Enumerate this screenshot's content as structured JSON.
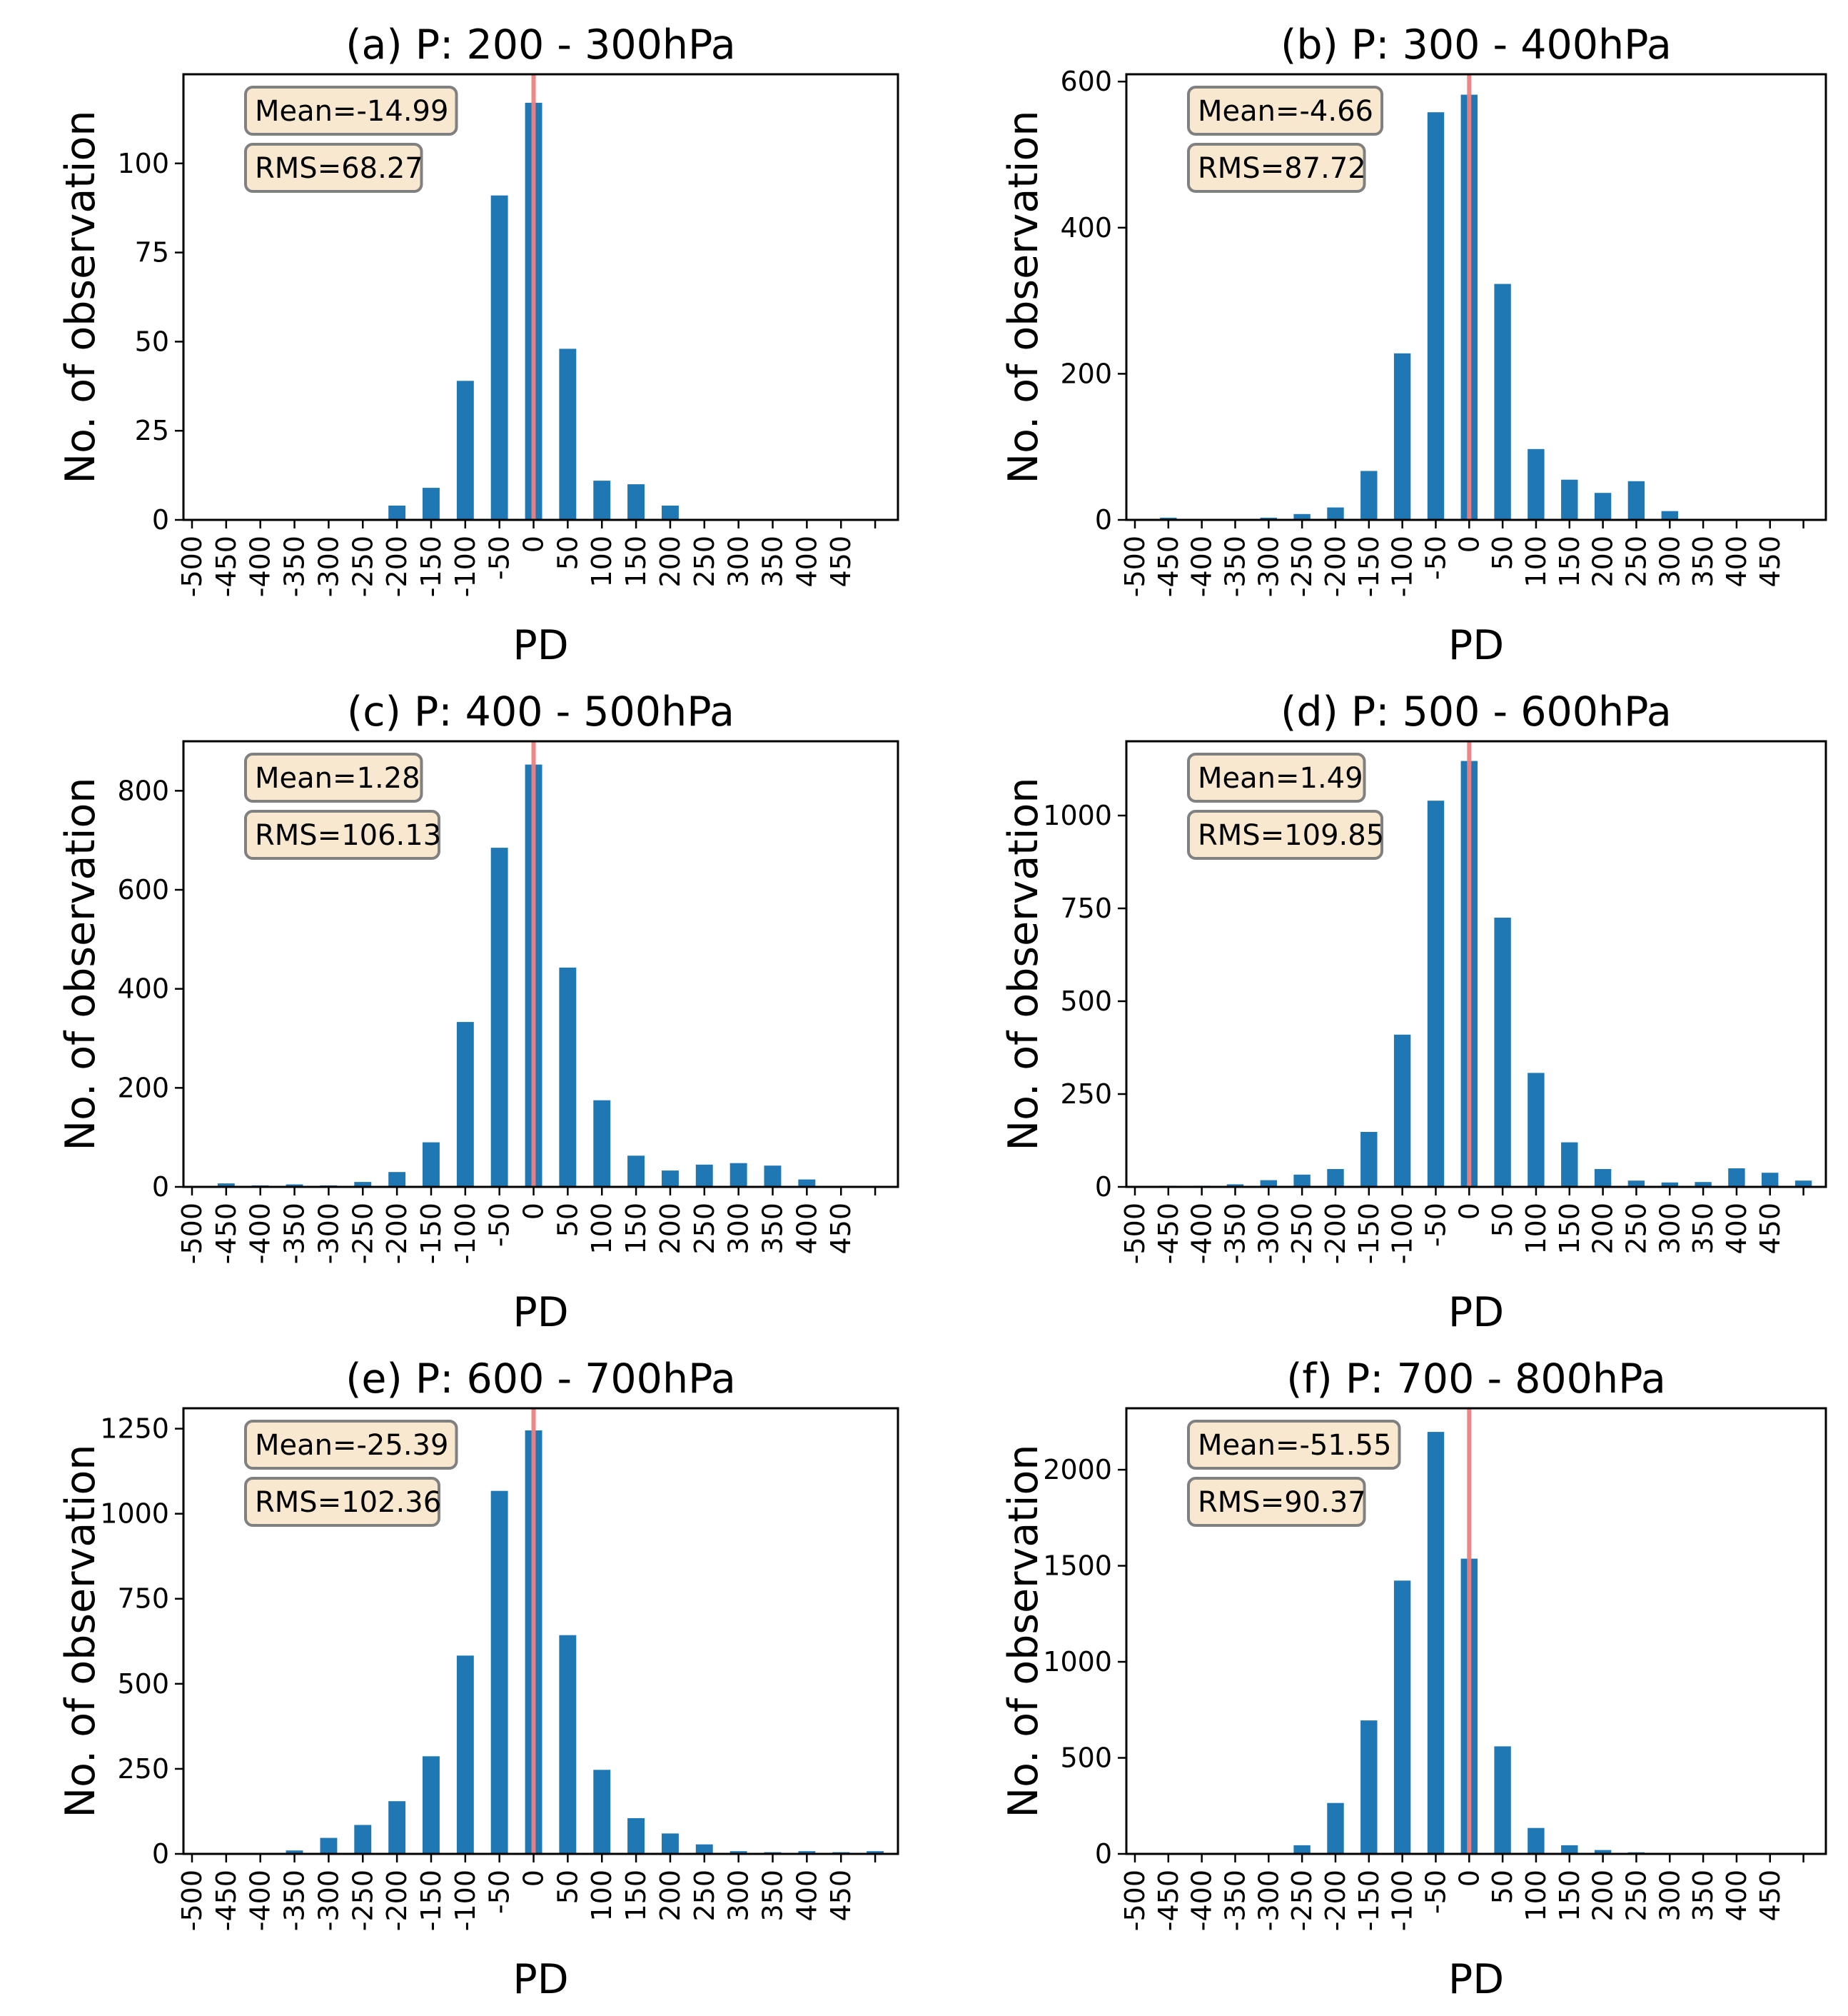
{
  "chart_data": [
    {
      "type": "bar",
      "title": "(a) P: 200 - 300hPa",
      "xlabel": "PD",
      "ylabel": "No. of observation",
      "categories": [
        "-500",
        "-450",
        "-400",
        "-350",
        "-300",
        "-250",
        "-200",
        "-150",
        "-100",
        "-50",
        "0",
        "50",
        "100",
        "150",
        "200",
        "250",
        "300",
        "350",
        "400",
        "450",
        ""
      ],
      "values": [
        0,
        0,
        0,
        0,
        0,
        0,
        4,
        9,
        39,
        91,
        117,
        48,
        11,
        10,
        4,
        0,
        0,
        0,
        0,
        0,
        0
      ],
      "ylim": [
        0,
        125
      ],
      "yticks": [
        0,
        25,
        50,
        75,
        100
      ],
      "ytick_labels": [
        "0",
        "25",
        "50",
        "75",
        "100"
      ],
      "bar_color": "#1f77b4",
      "vline": {
        "x": 0,
        "color": "#f08080"
      },
      "annotations": [
        "Mean=-14.99",
        "RMS=68.27"
      ],
      "annotation_box_color": "#f8e8d0",
      "grid": false
    },
    {
      "type": "bar",
      "title": "(b) P: 300 - 400hPa",
      "xlabel": "PD",
      "ylabel": "No. of observation",
      "categories": [
        "-500",
        "-450",
        "-400",
        "-350",
        "-300",
        "-250",
        "-200",
        "-150",
        "-100",
        "-50",
        "0",
        "50",
        "100",
        "150",
        "200",
        "250",
        "300",
        "350",
        "400",
        "450",
        ""
      ],
      "values": [
        0,
        3,
        0,
        0,
        3,
        8,
        17,
        67,
        228,
        558,
        582,
        323,
        97,
        55,
        37,
        53,
        12,
        0,
        0,
        0,
        0
      ],
      "ylim": [
        0,
        610
      ],
      "yticks": [
        0,
        200,
        400,
        600
      ],
      "ytick_labels": [
        "0",
        "200",
        "400",
        "600"
      ],
      "bar_color": "#1f77b4",
      "vline": {
        "x": 0,
        "color": "#f08080"
      },
      "annotations": [
        "Mean=-4.66",
        "RMS=87.72"
      ],
      "annotation_box_color": "#f8e8d0",
      "grid": false
    },
    {
      "type": "bar",
      "title": "(c) P: 400 - 500hPa",
      "xlabel": "PD",
      "ylabel": "No. of observation",
      "categories": [
        "-500",
        "-450",
        "-400",
        "-350",
        "-300",
        "-250",
        "-200",
        "-150",
        "-100",
        "-50",
        "0",
        "50",
        "100",
        "150",
        "200",
        "250",
        "300",
        "350",
        "400",
        "450",
        ""
      ],
      "values": [
        0,
        7,
        3,
        5,
        3,
        10,
        30,
        90,
        333,
        685,
        853,
        443,
        175,
        63,
        33,
        45,
        48,
        43,
        15,
        0,
        0
      ],
      "ylim": [
        0,
        900
      ],
      "yticks": [
        0,
        200,
        400,
        600,
        800
      ],
      "ytick_labels": [
        "0",
        "200",
        "400",
        "600",
        "800"
      ],
      "bar_color": "#1f77b4",
      "vline": {
        "x": 0,
        "color": "#f08080"
      },
      "annotations": [
        "Mean=1.28",
        "RMS=106.13"
      ],
      "annotation_box_color": "#f8e8d0",
      "grid": false
    },
    {
      "type": "bar",
      "title": "(d) P: 500 - 600hPa",
      "xlabel": "PD",
      "ylabel": "No. of observation",
      "categories": [
        "-500",
        "-450",
        "-400",
        "-350",
        "-300",
        "-250",
        "-200",
        "-150",
        "-100",
        "-50",
        "0",
        "50",
        "100",
        "150",
        "200",
        "250",
        "300",
        "350",
        "400",
        "450",
        ""
      ],
      "values": [
        0,
        3,
        3,
        7,
        18,
        33,
        48,
        148,
        410,
        1040,
        1147,
        725,
        307,
        120,
        48,
        17,
        12,
        13,
        50,
        38,
        17
      ],
      "ylim": [
        0,
        1200
      ],
      "yticks": [
        0,
        250,
        500,
        750,
        1000
      ],
      "ytick_labels": [
        "0",
        "250",
        "500",
        "750",
        "1000"
      ],
      "bar_color": "#1f77b4",
      "vline": {
        "x": 0,
        "color": "#f08080"
      },
      "annotations": [
        "Mean=1.49",
        "RMS=109.85"
      ],
      "annotation_box_color": "#f8e8d0",
      "grid": false
    },
    {
      "type": "bar",
      "title": "(e) P: 600 - 700hPa",
      "xlabel": "PD",
      "ylabel": "No. of observation",
      "categories": [
        "-500",
        "-450",
        "-400",
        "-350",
        "-300",
        "-250",
        "-200",
        "-150",
        "-100",
        "-50",
        "0",
        "50",
        "100",
        "150",
        "200",
        "250",
        "300",
        "350",
        "400",
        "450",
        ""
      ],
      "values": [
        0,
        0,
        0,
        10,
        47,
        85,
        155,
        287,
        583,
        1067,
        1245,
        643,
        247,
        105,
        60,
        28,
        8,
        5,
        8,
        5,
        8
      ],
      "ylim": [
        0,
        1310
      ],
      "yticks": [
        0,
        250,
        500,
        750,
        1000,
        1250
      ],
      "ytick_labels": [
        "0",
        "250",
        "500",
        "750",
        "1000",
        "1250"
      ],
      "bar_color": "#1f77b4",
      "vline": {
        "x": 0,
        "color": "#f08080"
      },
      "annotations": [
        "Mean=-25.39",
        "RMS=102.36"
      ],
      "annotation_box_color": "#f8e8d0",
      "grid": false
    },
    {
      "type": "bar",
      "title": "(f) P: 700 - 800hPa",
      "xlabel": "PD",
      "ylabel": "No. of observation",
      "categories": [
        "-500",
        "-450",
        "-400",
        "-350",
        "-300",
        "-250",
        "-200",
        "-150",
        "-100",
        "-50",
        "0",
        "50",
        "100",
        "150",
        "200",
        "250",
        "300",
        "350",
        "400",
        "450",
        ""
      ],
      "values": [
        0,
        0,
        0,
        0,
        0,
        45,
        265,
        695,
        1423,
        2197,
        1537,
        560,
        135,
        45,
        20,
        8,
        0,
        0,
        0,
        0,
        0
      ],
      "ylim": [
        0,
        2320
      ],
      "yticks": [
        0,
        500,
        1000,
        1500,
        2000
      ],
      "ytick_labels": [
        "0",
        "500",
        "1000",
        "1500",
        "2000"
      ],
      "bar_color": "#1f77b4",
      "vline": {
        "x": 0,
        "color": "#f08080"
      },
      "annotations": [
        "Mean=-51.55",
        "RMS=90.37"
      ],
      "annotation_box_color": "#f8e8d0",
      "grid": false
    }
  ]
}
